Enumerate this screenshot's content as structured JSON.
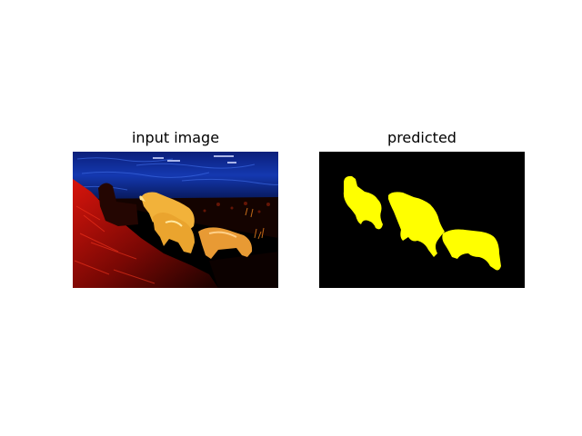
{
  "figure": {
    "panels": [
      {
        "title": "input image",
        "content": "contrast-stretched photo of sheep on a rocky shore by the water"
      },
      {
        "title": "predicted",
        "content": "binary segmentation mask of sheep"
      }
    ]
  },
  "colors": {
    "background": "#ffffff",
    "mask_foreground": "#ffff00",
    "mask_background": "#000000",
    "water": "#0a2a8a",
    "ground": "#c0100a",
    "sheep": "#f2b23a"
  }
}
